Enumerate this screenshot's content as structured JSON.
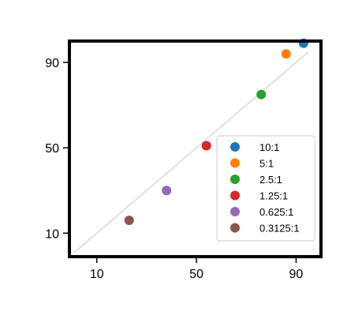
{
  "chart_data": {
    "type": "scatter",
    "title": "",
    "xlabel": "",
    "ylabel": "",
    "xlim": [
      -1,
      100
    ],
    "ylim": [
      -1,
      100
    ],
    "xticks": [
      10,
      50,
      90
    ],
    "yticks": [
      10,
      50,
      90
    ],
    "grid": false,
    "legend_position": "bottom-right",
    "reference_line": {
      "from": [
        1,
        1
      ],
      "to": [
        95,
        95
      ],
      "color": "#d3d3d3"
    },
    "series": [
      {
        "name": "10:1",
        "x": [
          93
        ],
        "y": [
          99
        ],
        "color": "#1f77b4"
      },
      {
        "name": "5:1",
        "x": [
          86
        ],
        "y": [
          94
        ],
        "color": "#ff7f0e"
      },
      {
        "name": "2.5:1",
        "x": [
          76
        ],
        "y": [
          75
        ],
        "color": "#2ca02c"
      },
      {
        "name": "1.25:1",
        "x": [
          54
        ],
        "y": [
          51
        ],
        "color": "#d62728"
      },
      {
        "name": "0.625:1",
        "x": [
          38
        ],
        "y": [
          30
        ],
        "color": "#9467bd"
      },
      {
        "name": "0.3125:1",
        "x": [
          23
        ],
        "y": [
          16
        ],
        "color": "#8c564b"
      }
    ]
  }
}
